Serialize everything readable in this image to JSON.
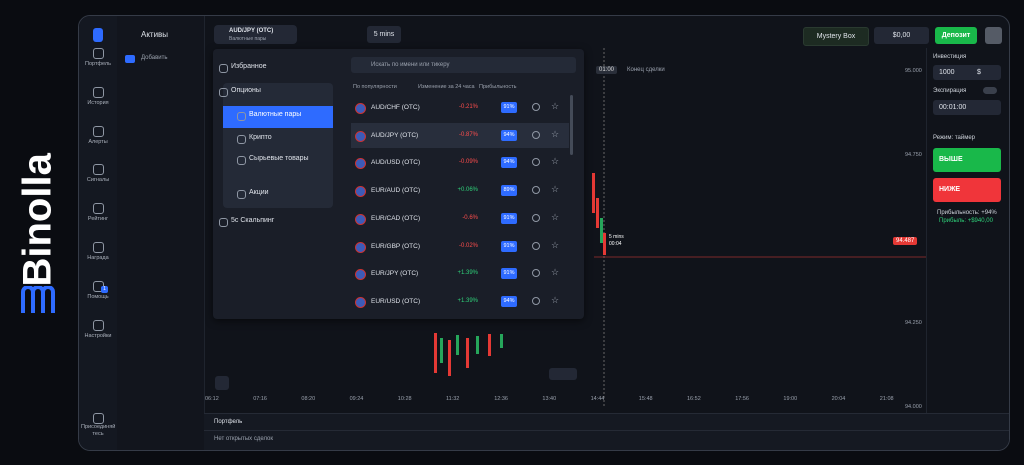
{
  "brand": "Binolla",
  "sidebar": {
    "items": [
      "Портфель",
      "История",
      "Алерты",
      "Сигналы",
      "Рейтинг",
      "Награда",
      "Помощь",
      "Настройки"
    ],
    "badge": "1",
    "join": "Присоединяй тесь"
  },
  "assets": {
    "title": "Активы",
    "add": "Добавить"
  },
  "header": {
    "pair": "AUD/JPY (OTC)",
    "pair_type": "Валютные пары",
    "timeframe": "5 mins",
    "mystery": "Mystery Box",
    "balance": "$0,00",
    "deposit": "Депозит"
  },
  "panel": {
    "menu": [
      "Избранное",
      "Опционы",
      "Валютные пары",
      "Крипто",
      "Сырьевые товары",
      "Акции",
      "5с Скальпинг"
    ],
    "search": "Искать по имени или тикеру",
    "columns": [
      "По популярности",
      "Изменение за 24 часа",
      "Прибыльность"
    ],
    "rows": [
      [
        "AUD/CHF (OTC)",
        "-0.21%",
        "91%"
      ],
      [
        "AUD/JPY (OTC)",
        "-0.87%",
        "94%"
      ],
      [
        "AUD/USD (OTC)",
        "-0.09%",
        "94%"
      ],
      [
        "EUR/AUD (OTC)",
        "+0.06%",
        "89%"
      ],
      [
        "EUR/CAD (OTC)",
        "-0.6%",
        "91%"
      ],
      [
        "EUR/GBP (OTC)",
        "-0.02%",
        "91%"
      ],
      [
        "EUR/JPY (OTC)",
        "+1.39%",
        "91%"
      ],
      [
        "EUR/USD (OTC)",
        "+1.39%",
        "94%"
      ]
    ]
  },
  "chart": {
    "timer": "01:00",
    "deal_end": "Конец сделки",
    "prices": [
      "95.000",
      "94.750",
      "94.250",
      "94.000"
    ],
    "current_price": "94.487",
    "candle_tf": "5 mins",
    "countdown": "00:04",
    "times": [
      "06:12",
      "07:16",
      "08:20",
      "09:24",
      "10:28",
      "11:32",
      "12:36",
      "13:40",
      "14:44",
      "15:48",
      "16:52",
      "17:56",
      "19:00",
      "20:04",
      "21:08"
    ]
  },
  "trade": {
    "investment_label": "Инвестиция",
    "investment": "1000",
    "currency": "$",
    "expiration_label": "Экспирация",
    "expiration": "00:01:00",
    "mode": "Режим: таймер",
    "up": "ВЫШЕ",
    "down": "НИЖЕ",
    "profitability": "Прибыльность: +94%",
    "profit": "Прибыль: +$940,00"
  },
  "portfolio": {
    "title": "Портфель",
    "empty": "Нет открытых сделок"
  }
}
